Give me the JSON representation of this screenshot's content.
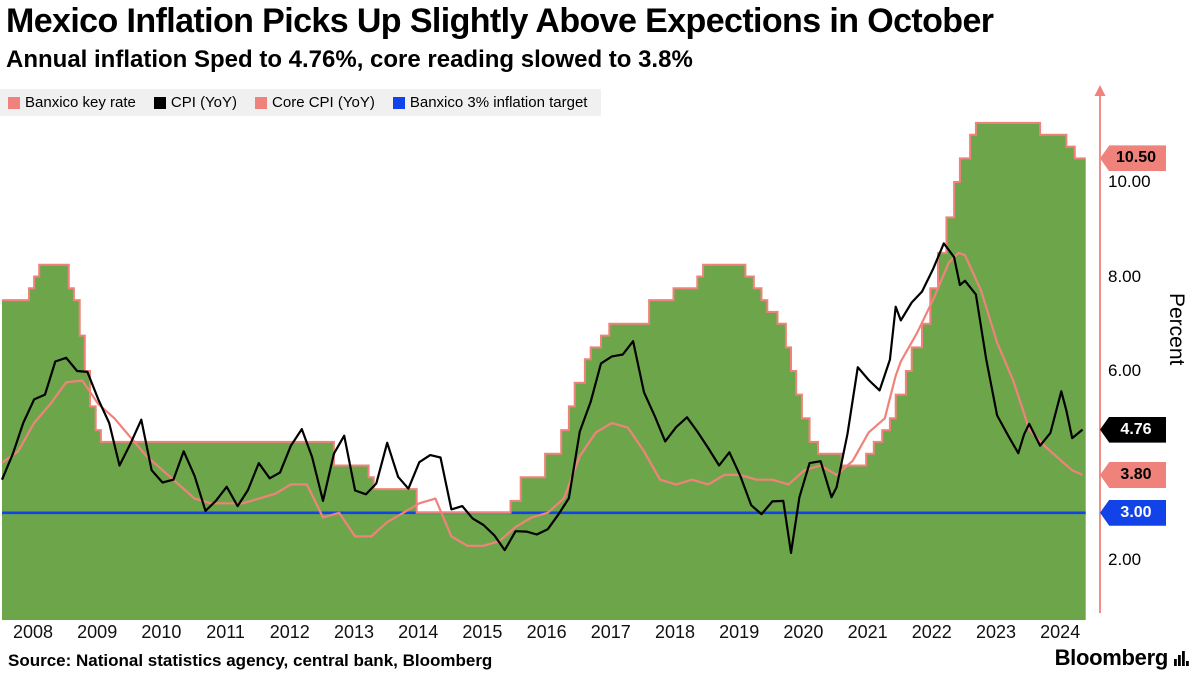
{
  "header": {
    "title": "Mexico Inflation Picks Up Slightly Above Expections in October",
    "subtitle": "Annual inflation Sped to 4.76%, core reading slowed to 3.8%"
  },
  "legend": {
    "items": [
      {
        "label": "Banxico key rate",
        "color": "#ef837b"
      },
      {
        "label": "CPI (YoY)",
        "color": "#000000"
      },
      {
        "label": "Core CPI (YoY)",
        "color": "#ef837b"
      },
      {
        "label": "Banxico 3% inflation target",
        "color": "#1243e8"
      }
    ]
  },
  "axis": {
    "color": "#ef837b",
    "y_label": "Percent",
    "y_ticks": [
      {
        "label": "10.00",
        "value": 10
      },
      {
        "label": "8.00",
        "value": 8
      },
      {
        "label": "6.00",
        "value": 6
      },
      {
        "label": "2.00",
        "value": 2
      }
    ],
    "badges": [
      {
        "label": "10.50",
        "value": 10.5,
        "bg": "#ef837b",
        "fg": "#000000"
      },
      {
        "label": "4.76",
        "value": 4.76,
        "bg": "#000000",
        "fg": "#ffffff"
      },
      {
        "label": "3.80",
        "value": 3.8,
        "bg": "#ef837b",
        "fg": "#000000"
      },
      {
        "label": "3.00",
        "value": 3.0,
        "bg": "#1243e8",
        "fg": "#ffffff"
      }
    ],
    "x_ticks": [
      "2008",
      "2009",
      "2010",
      "2011",
      "2012",
      "2013",
      "2014",
      "2015",
      "2016",
      "2017",
      "2018",
      "2019",
      "2020",
      "2021",
      "2022",
      "2023",
      "2024"
    ]
  },
  "footer": {
    "source": "Source: National statistics agency, central bank, Bloomberg",
    "brand": "Bloomberg"
  },
  "chart_data": {
    "type": "line",
    "title": "Mexico Inflation Picks Up Slightly Above Expections in October",
    "subtitle": "Annual inflation Sped to 4.76%, core reading slowed to 3.8%",
    "xlabel": "",
    "ylabel": "Percent",
    "x_range": [
      2008,
      2024.88
    ],
    "ylim": [
      0.7,
      12.0
    ],
    "y_ticks_shown": [
      2,
      6,
      8,
      10
    ],
    "grid": false,
    "legend_position": "top-left",
    "series": [
      {
        "name": "Banxico key rate",
        "style": "step-area",
        "fill": "#6da64a",
        "color": "#ef837b",
        "last_value": 10.5,
        "points": [
          [
            2008.0,
            7.5
          ],
          [
            2008.42,
            7.75
          ],
          [
            2008.5,
            8.0
          ],
          [
            2008.58,
            8.25
          ],
          [
            2009.04,
            7.75
          ],
          [
            2009.12,
            7.5
          ],
          [
            2009.21,
            6.75
          ],
          [
            2009.29,
            6.0
          ],
          [
            2009.37,
            5.25
          ],
          [
            2009.46,
            4.75
          ],
          [
            2009.54,
            4.5
          ],
          [
            2013.17,
            4.0
          ],
          [
            2013.71,
            3.75
          ],
          [
            2013.79,
            3.5
          ],
          [
            2014.46,
            3.0
          ],
          [
            2015.92,
            3.25
          ],
          [
            2016.08,
            3.75
          ],
          [
            2016.46,
            4.25
          ],
          [
            2016.71,
            4.75
          ],
          [
            2016.83,
            5.25
          ],
          [
            2016.92,
            5.75
          ],
          [
            2017.08,
            6.25
          ],
          [
            2017.17,
            6.5
          ],
          [
            2017.33,
            6.75
          ],
          [
            2017.46,
            7.0
          ],
          [
            2018.08,
            7.5
          ],
          [
            2018.46,
            7.75
          ],
          [
            2018.83,
            8.0
          ],
          [
            2018.92,
            8.25
          ],
          [
            2019.58,
            8.0
          ],
          [
            2019.71,
            7.75
          ],
          [
            2019.83,
            7.5
          ],
          [
            2019.92,
            7.25
          ],
          [
            2020.08,
            7.0
          ],
          [
            2020.21,
            6.5
          ],
          [
            2020.29,
            6.0
          ],
          [
            2020.37,
            5.5
          ],
          [
            2020.46,
            5.0
          ],
          [
            2020.58,
            4.5
          ],
          [
            2020.71,
            4.25
          ],
          [
            2021.08,
            4.0
          ],
          [
            2021.46,
            4.25
          ],
          [
            2021.58,
            4.5
          ],
          [
            2021.71,
            4.75
          ],
          [
            2021.83,
            5.0
          ],
          [
            2021.92,
            5.5
          ],
          [
            2022.08,
            6.0
          ],
          [
            2022.17,
            6.5
          ],
          [
            2022.33,
            7.0
          ],
          [
            2022.46,
            7.75
          ],
          [
            2022.58,
            8.5
          ],
          [
            2022.71,
            9.25
          ],
          [
            2022.83,
            10.0
          ],
          [
            2022.92,
            10.5
          ],
          [
            2023.08,
            11.0
          ],
          [
            2023.17,
            11.25
          ],
          [
            2024.17,
            11.0
          ],
          [
            2024.58,
            10.75
          ],
          [
            2024.71,
            10.5
          ]
        ]
      },
      {
        "name": "CPI (YoY)",
        "style": "line",
        "color": "#000000",
        "last_value": 4.76,
        "points": [
          [
            2008.0,
            3.7
          ],
          [
            2008.17,
            4.25
          ],
          [
            2008.33,
            4.9
          ],
          [
            2008.5,
            5.4
          ],
          [
            2008.67,
            5.5
          ],
          [
            2008.83,
            6.2
          ],
          [
            2009.0,
            6.28
          ],
          [
            2009.17,
            6.0
          ],
          [
            2009.33,
            5.98
          ],
          [
            2009.5,
            5.4
          ],
          [
            2009.67,
            4.9
          ],
          [
            2009.83,
            4.0
          ],
          [
            2010.0,
            4.46
          ],
          [
            2010.17,
            4.97
          ],
          [
            2010.33,
            3.9
          ],
          [
            2010.5,
            3.64
          ],
          [
            2010.67,
            3.7
          ],
          [
            2010.83,
            4.3
          ],
          [
            2011.0,
            3.78
          ],
          [
            2011.17,
            3.04
          ],
          [
            2011.33,
            3.25
          ],
          [
            2011.5,
            3.55
          ],
          [
            2011.67,
            3.14
          ],
          [
            2011.83,
            3.48
          ],
          [
            2012.0,
            4.05
          ],
          [
            2012.17,
            3.73
          ],
          [
            2012.33,
            3.85
          ],
          [
            2012.5,
            4.42
          ],
          [
            2012.67,
            4.77
          ],
          [
            2012.83,
            4.18
          ],
          [
            2013.0,
            3.25
          ],
          [
            2013.17,
            4.25
          ],
          [
            2013.33,
            4.63
          ],
          [
            2013.5,
            3.47
          ],
          [
            2013.67,
            3.39
          ],
          [
            2013.83,
            3.62
          ],
          [
            2014.0,
            4.48
          ],
          [
            2014.17,
            3.76
          ],
          [
            2014.33,
            3.51
          ],
          [
            2014.5,
            4.07
          ],
          [
            2014.67,
            4.22
          ],
          [
            2014.83,
            4.17
          ],
          [
            2015.0,
            3.07
          ],
          [
            2015.17,
            3.14
          ],
          [
            2015.33,
            2.88
          ],
          [
            2015.5,
            2.74
          ],
          [
            2015.67,
            2.52
          ],
          [
            2015.83,
            2.21
          ],
          [
            2016.0,
            2.61
          ],
          [
            2016.17,
            2.6
          ],
          [
            2016.33,
            2.54
          ],
          [
            2016.5,
            2.65
          ],
          [
            2016.67,
            2.97
          ],
          [
            2016.83,
            3.31
          ],
          [
            2017.0,
            4.72
          ],
          [
            2017.17,
            5.35
          ],
          [
            2017.33,
            6.16
          ],
          [
            2017.5,
            6.31
          ],
          [
            2017.67,
            6.35
          ],
          [
            2017.83,
            6.63
          ],
          [
            2018.0,
            5.55
          ],
          [
            2018.17,
            5.04
          ],
          [
            2018.33,
            4.51
          ],
          [
            2018.5,
            4.81
          ],
          [
            2018.67,
            5.02
          ],
          [
            2018.83,
            4.72
          ],
          [
            2019.0,
            4.37
          ],
          [
            2019.17,
            4.0
          ],
          [
            2019.33,
            4.28
          ],
          [
            2019.5,
            3.78
          ],
          [
            2019.67,
            3.16
          ],
          [
            2019.83,
            2.97
          ],
          [
            2020.0,
            3.24
          ],
          [
            2020.17,
            3.25
          ],
          [
            2020.29,
            2.15
          ],
          [
            2020.42,
            3.33
          ],
          [
            2020.58,
            4.05
          ],
          [
            2020.75,
            4.09
          ],
          [
            2020.92,
            3.33
          ],
          [
            2021.0,
            3.54
          ],
          [
            2021.17,
            4.67
          ],
          [
            2021.33,
            6.08
          ],
          [
            2021.5,
            5.81
          ],
          [
            2021.67,
            5.59
          ],
          [
            2021.83,
            6.24
          ],
          [
            2021.92,
            7.36
          ],
          [
            2022.0,
            7.07
          ],
          [
            2022.17,
            7.45
          ],
          [
            2022.33,
            7.68
          ],
          [
            2022.5,
            8.15
          ],
          [
            2022.67,
            8.7
          ],
          [
            2022.83,
            8.41
          ],
          [
            2022.92,
            7.82
          ],
          [
            2023.0,
            7.91
          ],
          [
            2023.17,
            7.62
          ],
          [
            2023.33,
            6.25
          ],
          [
            2023.5,
            5.06
          ],
          [
            2023.67,
            4.64
          ],
          [
            2023.83,
            4.26
          ],
          [
            2023.92,
            4.66
          ],
          [
            2024.0,
            4.88
          ],
          [
            2024.17,
            4.42
          ],
          [
            2024.33,
            4.69
          ],
          [
            2024.5,
            5.57
          ],
          [
            2024.58,
            5.16
          ],
          [
            2024.67,
            4.58
          ],
          [
            2024.83,
            4.76
          ]
        ]
      },
      {
        "name": "Core CPI (YoY)",
        "style": "line",
        "color": "#ef837b",
        "last_value": 3.8,
        "points": [
          [
            2008.0,
            4.06
          ],
          [
            2008.25,
            4.3
          ],
          [
            2008.5,
            4.9
          ],
          [
            2008.75,
            5.3
          ],
          [
            2009.0,
            5.76
          ],
          [
            2009.25,
            5.8
          ],
          [
            2009.5,
            5.3
          ],
          [
            2009.75,
            5.0
          ],
          [
            2010.0,
            4.6
          ],
          [
            2010.25,
            4.2
          ],
          [
            2010.5,
            3.9
          ],
          [
            2010.75,
            3.6
          ],
          [
            2011.0,
            3.3
          ],
          [
            2011.25,
            3.2
          ],
          [
            2011.5,
            3.2
          ],
          [
            2011.75,
            3.2
          ],
          [
            2012.0,
            3.3
          ],
          [
            2012.25,
            3.4
          ],
          [
            2012.5,
            3.6
          ],
          [
            2012.75,
            3.6
          ],
          [
            2013.0,
            2.9
          ],
          [
            2013.25,
            3.0
          ],
          [
            2013.5,
            2.5
          ],
          [
            2013.75,
            2.5
          ],
          [
            2014.0,
            2.8
          ],
          [
            2014.25,
            3.0
          ],
          [
            2014.5,
            3.2
          ],
          [
            2014.75,
            3.3
          ],
          [
            2015.0,
            2.5
          ],
          [
            2015.25,
            2.3
          ],
          [
            2015.5,
            2.3
          ],
          [
            2015.75,
            2.4
          ],
          [
            2016.0,
            2.7
          ],
          [
            2016.25,
            2.9
          ],
          [
            2016.5,
            3.0
          ],
          [
            2016.75,
            3.3
          ],
          [
            2017.0,
            4.2
          ],
          [
            2017.25,
            4.7
          ],
          [
            2017.5,
            4.9
          ],
          [
            2017.75,
            4.8
          ],
          [
            2018.0,
            4.3
          ],
          [
            2018.25,
            3.7
          ],
          [
            2018.5,
            3.6
          ],
          [
            2018.75,
            3.7
          ],
          [
            2019.0,
            3.6
          ],
          [
            2019.25,
            3.8
          ],
          [
            2019.5,
            3.8
          ],
          [
            2019.75,
            3.7
          ],
          [
            2020.0,
            3.7
          ],
          [
            2020.25,
            3.6
          ],
          [
            2020.5,
            3.9
          ],
          [
            2020.75,
            4.0
          ],
          [
            2021.0,
            3.8
          ],
          [
            2021.25,
            4.1
          ],
          [
            2021.5,
            4.7
          ],
          [
            2021.75,
            5.0
          ],
          [
            2021.92,
            5.9
          ],
          [
            2022.0,
            6.2
          ],
          [
            2022.25,
            6.8
          ],
          [
            2022.5,
            7.5
          ],
          [
            2022.75,
            8.3
          ],
          [
            2022.9,
            8.5
          ],
          [
            2023.0,
            8.45
          ],
          [
            2023.25,
            7.7
          ],
          [
            2023.5,
            6.6
          ],
          [
            2023.75,
            5.8
          ],
          [
            2023.92,
            5.1
          ],
          [
            2024.0,
            4.76
          ],
          [
            2024.25,
            4.4
          ],
          [
            2024.5,
            4.1
          ],
          [
            2024.67,
            3.9
          ],
          [
            2024.83,
            3.8
          ]
        ]
      },
      {
        "name": "Banxico 3% inflation target",
        "style": "hline",
        "color": "#1243e8",
        "value": 3.0
      }
    ]
  }
}
